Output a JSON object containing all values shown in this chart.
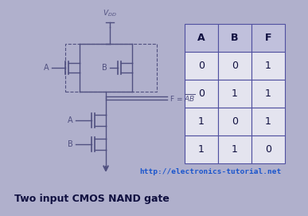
{
  "bg_color": "#b0b0cc",
  "inner_bg": "#e4e4ef",
  "title": "Two input CMOS NAND gate",
  "url": "http://electronics-tutorial.net",
  "url_color": "#1a55cc",
  "table_headers": [
    "A",
    "B",
    "F"
  ],
  "table_rows": [
    [
      0,
      0,
      1
    ],
    [
      0,
      1,
      1
    ],
    [
      1,
      0,
      1
    ],
    [
      1,
      1,
      0
    ]
  ],
  "table_header_bg": "#c0c0dc",
  "table_cell_bg": "#e4e4ef",
  "table_border_color": "#5050a0",
  "circuit_color": "#505080",
  "title_fontsize": 9,
  "url_fontsize": 7.5,
  "circuit_lw": 1.0
}
